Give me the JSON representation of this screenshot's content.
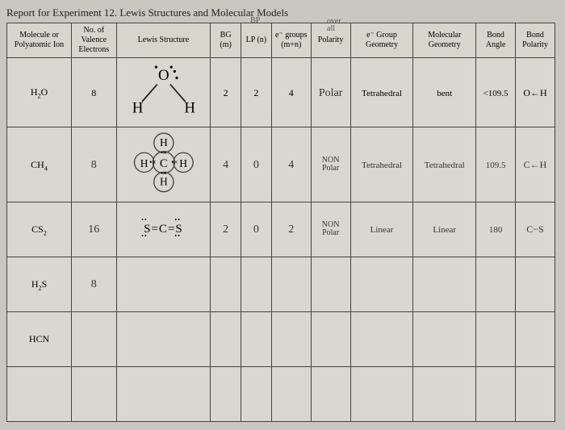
{
  "title": "Report for Experiment 12. Lewis Structures and Molecular Models",
  "annotations": {
    "bp": "BP",
    "overall": "over\nall"
  },
  "headers": {
    "molecule": "Molecule or Polyatomic Ion",
    "valence": "No. of Valence Electrons",
    "lewis": "Lewis Structure",
    "bg": "BG (m)",
    "lp": "LP (n)",
    "egroups": "e⁻ groups (m+n)",
    "polarity": "Polarity",
    "egeom": "e⁻ Group Geometry",
    "molgeom": "Molecular Geometry",
    "angle": "Bond Angle",
    "bondpol": "Bond Polarity"
  },
  "rows": [
    {
      "molecule": "H₂O",
      "valence": "8",
      "lewis_type": "h2o",
      "bg": "2",
      "lp": "2",
      "egroups": "4",
      "polarity": "Polar",
      "egeom": "Tetrahedral",
      "molgeom": "bent",
      "angle": "<109.5",
      "bondpol": "O←H",
      "printed_row": true
    },
    {
      "molecule": "CH₄",
      "valence": "8",
      "lewis_type": "ch4",
      "bg": "4",
      "lp": "0",
      "egroups": "4",
      "polarity_top": "NON",
      "polarity_bot": "Polar",
      "egeom": "Tetrahedral",
      "molgeom": "Tetrahedral",
      "angle": "109.5",
      "bondpol": "C←H"
    },
    {
      "molecule": "CS₂",
      "valence": "16",
      "lewis_type": "cs2",
      "bg": "2",
      "lp": "0",
      "egroups": "2",
      "polarity_top": "NON",
      "polarity_bot": "Polar",
      "egeom": "Linear",
      "molgeom": "Linear",
      "angle": "180",
      "bondpol": "C−S"
    },
    {
      "molecule": "H₂S",
      "valence": "8",
      "lewis_type": "",
      "bg": "",
      "lp": "",
      "egroups": "",
      "polarity": "",
      "egeom": "",
      "molgeom": "",
      "angle": "",
      "bondpol": ""
    },
    {
      "molecule": "HCN",
      "valence": "",
      "lewis_type": "",
      "bg": "",
      "lp": "",
      "egroups": "",
      "polarity": "",
      "egeom": "",
      "molgeom": "",
      "angle": "",
      "bondpol": ""
    },
    {
      "molecule": "",
      "valence": "",
      "lewis_type": "",
      "bg": "",
      "lp": "",
      "egroups": "",
      "polarity": "",
      "egeom": "",
      "molgeom": "",
      "angle": "",
      "bondpol": ""
    }
  ],
  "colors": {
    "page_bg": "#c8c8c0",
    "table_bg": "#d8d8d0",
    "border": "#444",
    "text": "#222",
    "hand": "#333"
  }
}
